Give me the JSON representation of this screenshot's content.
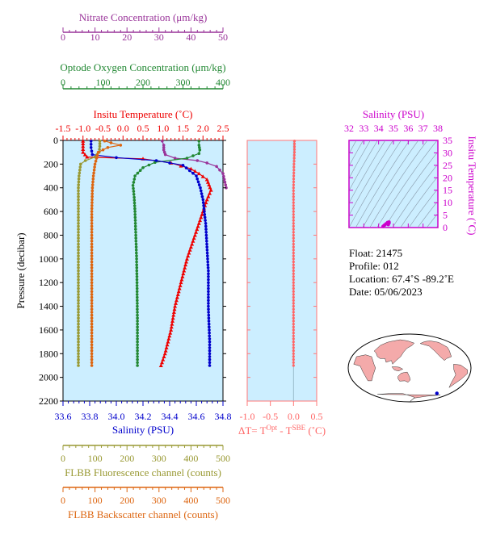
{
  "chart_data": [
    {
      "type": "line",
      "panel": "profile",
      "title": "",
      "ylabel": "Pressure (decibar)",
      "ylim": [
        2200,
        0
      ],
      "yticks": [
        "0",
        "200",
        "400",
        "600",
        "800",
        "1000",
        "1200",
        "1400",
        "1600",
        "1800",
        "2000",
        "2200"
      ],
      "axes": {
        "nitrate": {
          "label": "Nitrate Concentration (μm/kg)",
          "range": [
            0,
            50
          ],
          "ticks": [
            "0",
            "10",
            "20",
            "30",
            "40",
            "50"
          ],
          "color": "#993399"
        },
        "oxygen": {
          "label": "Optode Oxygen Concentration (μm/kg)",
          "range": [
            0,
            400
          ],
          "ticks": [
            "0",
            "100",
            "200",
            "300",
            "400"
          ],
          "color": "#228833"
        },
        "temperature": {
          "label": "Insitu Temperature (˚C)",
          "range": [
            -1.5,
            2.5
          ],
          "ticks": [
            "-1.5",
            "-1.0",
            "-0.5",
            "0.0",
            "0.5",
            "1.0",
            "1.5",
            "2.0",
            "2.5"
          ],
          "color": "#ee0000"
        },
        "salinity": {
          "label": "Salinity (PSU)",
          "range": [
            33.6,
            34.8
          ],
          "ticks": [
            "33.6",
            "33.8",
            "34.0",
            "34.2",
            "34.4",
            "34.6",
            "34.8"
          ],
          "color": "#0000cc"
        },
        "fluorescence": {
          "label": "FLBB Fluorescence channel (counts)",
          "range": [
            0,
            500
          ],
          "ticks": [
            "0",
            "100",
            "200",
            "300",
            "400",
            "500"
          ],
          "color": "#999933"
        },
        "backscatter": {
          "label": "FLBB Backscatter channel (counts)",
          "range": [
            0,
            500
          ],
          "ticks": [
            "0",
            "100",
            "200",
            "300",
            "400",
            "500"
          ],
          "color": "#dd6611"
        }
      },
      "series": [
        {
          "axis": "nitrate",
          "color": "#993399",
          "points": [
            [
              31,
              5
            ],
            [
              31.5,
              40
            ],
            [
              31.5,
              80
            ],
            [
              32,
              120
            ],
            [
              35,
              150
            ],
            [
              42,
              170
            ],
            [
              45,
              190
            ],
            [
              48,
              220
            ],
            [
              50,
              280
            ],
            [
              51,
              400
            ]
          ]
        },
        {
          "axis": "oxygen",
          "color": "#228833",
          "points": [
            [
              340,
              5
            ],
            [
              340,
              40
            ],
            [
              342,
              80
            ],
            [
              340,
              110
            ],
            [
              310,
              150
            ],
            [
              230,
              185
            ],
            [
              200,
              230
            ],
            [
              180,
              300
            ],
            [
              175,
              380
            ],
            [
              178,
              480
            ],
            [
              180,
              600
            ],
            [
              182,
              800
            ],
            [
              184,
              1000
            ],
            [
              185,
              1200
            ],
            [
              186,
              1500
            ],
            [
              186,
              1900
            ]
          ]
        },
        {
          "axis": "temperature",
          "color": "#ee0000",
          "points": [
            [
              -1.0,
              5
            ],
            [
              -1.0,
              50
            ],
            [
              -1.0,
              100
            ],
            [
              -0.9,
              140
            ],
            [
              0.5,
              155
            ],
            [
              1.2,
              190
            ],
            [
              1.7,
              240
            ],
            [
              1.9,
              280
            ],
            [
              2.1,
              330
            ],
            [
              2.2,
              420
            ],
            [
              2.1,
              500
            ],
            [
              2.0,
              600
            ],
            [
              1.9,
              700
            ],
            [
              1.75,
              850
            ],
            [
              1.6,
              1000
            ],
            [
              1.45,
              1200
            ],
            [
              1.3,
              1400
            ],
            [
              1.2,
              1600
            ],
            [
              1.05,
              1800
            ],
            [
              0.95,
              1900
            ]
          ]
        },
        {
          "axis": "salinity",
          "color": "#0000cc",
          "points": [
            [
              33.81,
              5
            ],
            [
              33.81,
              60
            ],
            [
              33.82,
              120
            ],
            [
              34.0,
              145
            ],
            [
              34.3,
              170
            ],
            [
              34.5,
              210
            ],
            [
              34.6,
              300
            ],
            [
              34.63,
              400
            ],
            [
              34.65,
              500
            ],
            [
              34.67,
              700
            ],
            [
              34.68,
              900
            ],
            [
              34.69,
              1100
            ],
            [
              34.69,
              1400
            ],
            [
              34.7,
              1700
            ],
            [
              34.7,
              1900
            ]
          ]
        },
        {
          "axis": "fluorescence",
          "color": "#999933",
          "points": [
            [
              115,
              5
            ],
            [
              115,
              50
            ],
            [
              113,
              100
            ],
            [
              100,
              140
            ],
            [
              70,
              170
            ],
            [
              55,
              200
            ],
            [
              50,
              300
            ],
            [
              48,
              400
            ],
            [
              48,
              600
            ],
            [
              48,
              1000
            ],
            [
              48,
              1400
            ],
            [
              48,
              1900
            ]
          ]
        },
        {
          "axis": "backscatter",
          "color": "#dd6611",
          "points": [
            [
              130,
              5
            ],
            [
              150,
              20
            ],
            [
              180,
              40
            ],
            [
              140,
              60
            ],
            [
              110,
              100
            ],
            [
              105,
              150
            ],
            [
              100,
              200
            ],
            [
              95,
              300
            ],
            [
              92,
              400
            ],
            [
              90,
              600
            ],
            [
              90,
              1000
            ],
            [
              90,
              1400
            ],
            [
              90,
              1900
            ]
          ]
        }
      ]
    },
    {
      "type": "line",
      "panel": "delta-t",
      "xlabel": "ΔT= T",
      "xlabel_sup1": "Opt",
      "xlabel_mid": " - T",
      "xlabel_sup2": "SBE",
      "xlabel_unit": " (˚C)",
      "xlim": [
        -1.0,
        0.5
      ],
      "xticks": [
        "-1.0",
        "-0.5",
        "0.0",
        "0.5"
      ],
      "color": "#ff6666",
      "points": [
        [
          0.02,
          5
        ],
        [
          0.02,
          100
        ],
        [
          0.01,
          200
        ],
        [
          0.0,
          400
        ],
        [
          0.0,
          800
        ],
        [
          0.0,
          1200
        ],
        [
          0.0,
          1600
        ],
        [
          0.0,
          1900
        ]
      ]
    },
    {
      "type": "scatter",
      "panel": "ts-diagram",
      "title": "Salinity (PSU)",
      "ylabel": "Insitu Temperature (˚C)",
      "xlim": [
        32,
        38
      ],
      "ylim": [
        0,
        35
      ],
      "xticks": [
        "32",
        "33",
        "34",
        "35",
        "36",
        "37",
        "38"
      ],
      "yticks": [
        "0",
        "5",
        "10",
        "15",
        "20",
        "25",
        "30",
        "35"
      ],
      "color": "#cc00cc",
      "points": [
        [
          34.3,
          0.5
        ],
        [
          34.4,
          1.0
        ],
        [
          34.5,
          1.5
        ],
        [
          34.6,
          2.0
        ],
        [
          34.7,
          2.2
        ],
        [
          34.7,
          1.8
        ],
        [
          34.65,
          1.2
        ]
      ]
    }
  ],
  "info": {
    "float": "Float:  21475",
    "profile": "Profile:  012",
    "location": "Location:  67.4˚S  -89.2˚E",
    "date": "Date:  05/06/2023"
  },
  "map": {
    "ocean": "#ffffff",
    "land": "#f4aaaa",
    "marker": "#0000cc",
    "marker_lon": -89.2,
    "marker_lat": -67.4
  }
}
